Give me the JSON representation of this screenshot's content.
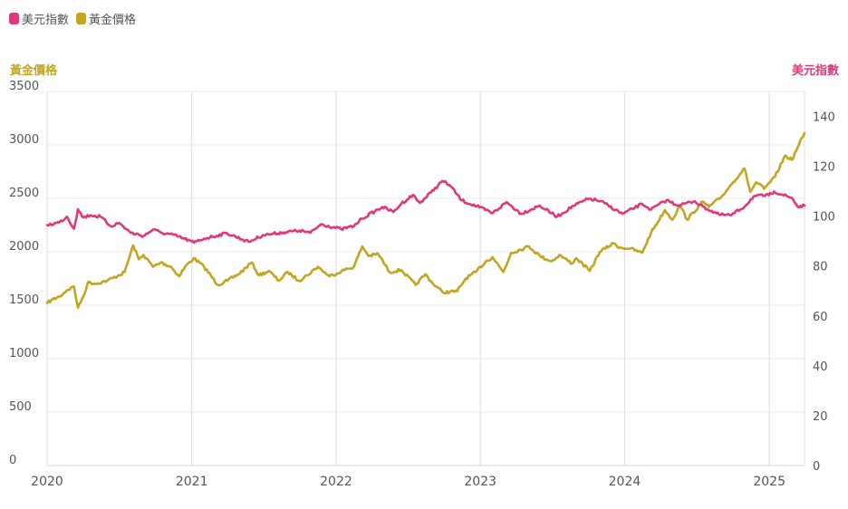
{
  "legend": [
    {
      "label": "美元指數",
      "color": "#e0387a"
    },
    {
      "label": "黃金價格",
      "color": "#c2a620"
    }
  ],
  "chart_data": {
    "type": "line",
    "x_axis": {
      "type": "date",
      "range": [
        "2020-01-01",
        "2025-03-31"
      ],
      "ticks": [
        "2020",
        "2021",
        "2022",
        "2023",
        "2024",
        "2025"
      ]
    },
    "y_left": {
      "label": "黃金價格",
      "color": "#c2a620",
      "range": [
        0,
        3500
      ],
      "ticks": [
        0,
        500,
        1000,
        1500,
        2000,
        2500,
        3000,
        3500
      ]
    },
    "y_right": {
      "label": "美元指數",
      "color": "#e0387a",
      "range": [
        0,
        150
      ],
      "ticks": [
        0,
        20,
        40,
        60,
        80,
        100,
        120,
        140
      ]
    },
    "grid": true,
    "legend_position": "top-left",
    "series": [
      {
        "name": "黃金價格",
        "axis": "left",
        "color": "#c2a620",
        "points": [
          [
            "2020-01-01",
            1520
          ],
          [
            "2020-01-15",
            1555
          ],
          [
            "2020-02-01",
            1580
          ],
          [
            "2020-02-20",
            1640
          ],
          [
            "2020-03-09",
            1675
          ],
          [
            "2020-03-19",
            1475
          ],
          [
            "2020-04-01",
            1580
          ],
          [
            "2020-04-15",
            1720
          ],
          [
            "2020-05-01",
            1700
          ],
          [
            "2020-06-01",
            1730
          ],
          [
            "2020-07-01",
            1780
          ],
          [
            "2020-07-15",
            1810
          ],
          [
            "2020-08-06",
            2060
          ],
          [
            "2020-08-20",
            1930
          ],
          [
            "2020-09-01",
            1970
          ],
          [
            "2020-09-25",
            1860
          ],
          [
            "2020-10-15",
            1900
          ],
          [
            "2020-11-09",
            1860
          ],
          [
            "2020-11-30",
            1770
          ],
          [
            "2020-12-15",
            1860
          ],
          [
            "2021-01-06",
            1940
          ],
          [
            "2021-02-01",
            1860
          ],
          [
            "2021-03-08",
            1690
          ],
          [
            "2021-04-01",
            1730
          ],
          [
            "2021-05-03",
            1800
          ],
          [
            "2021-06-01",
            1900
          ],
          [
            "2021-06-20",
            1780
          ],
          [
            "2021-07-15",
            1820
          ],
          [
            "2021-08-09",
            1730
          ],
          [
            "2021-09-01",
            1810
          ],
          [
            "2021-09-29",
            1730
          ],
          [
            "2021-10-20",
            1780
          ],
          [
            "2021-11-16",
            1860
          ],
          [
            "2021-12-15",
            1770
          ],
          [
            "2022-01-15",
            1820
          ],
          [
            "2022-02-15",
            1860
          ],
          [
            "2022-03-08",
            2050
          ],
          [
            "2022-03-25",
            1960
          ],
          [
            "2022-04-18",
            1980
          ],
          [
            "2022-05-16",
            1810
          ],
          [
            "2022-06-15",
            1830
          ],
          [
            "2022-07-21",
            1690
          ],
          [
            "2022-08-15",
            1790
          ],
          [
            "2022-09-01",
            1710
          ],
          [
            "2022-09-28",
            1620
          ],
          [
            "2022-11-03",
            1630
          ],
          [
            "2022-11-25",
            1750
          ],
          [
            "2022-12-20",
            1810
          ],
          [
            "2023-01-15",
            1910
          ],
          [
            "2023-02-01",
            1950
          ],
          [
            "2023-02-28",
            1810
          ],
          [
            "2023-03-20",
            1990
          ],
          [
            "2023-05-04",
            2050
          ],
          [
            "2023-06-01",
            1960
          ],
          [
            "2023-06-30",
            1910
          ],
          [
            "2023-07-20",
            1970
          ],
          [
            "2023-08-21",
            1890
          ],
          [
            "2023-09-01",
            1940
          ],
          [
            "2023-10-05",
            1820
          ],
          [
            "2023-10-30",
            2000
          ],
          [
            "2023-12-04",
            2080
          ],
          [
            "2023-12-20",
            2040
          ],
          [
            "2024-01-15",
            2030
          ],
          [
            "2024-02-14",
            1990
          ],
          [
            "2024-03-08",
            2180
          ],
          [
            "2024-04-12",
            2390
          ],
          [
            "2024-05-01",
            2300
          ],
          [
            "2024-05-20",
            2440
          ],
          [
            "2024-06-07",
            2300
          ],
          [
            "2024-07-17",
            2470
          ],
          [
            "2024-08-01",
            2420
          ],
          [
            "2024-09-01",
            2510
          ],
          [
            "2024-10-01",
            2650
          ],
          [
            "2024-10-30",
            2780
          ],
          [
            "2024-11-14",
            2560
          ],
          [
            "2024-11-29",
            2650
          ],
          [
            "2024-12-19",
            2590
          ],
          [
            "2025-01-15",
            2700
          ],
          [
            "2025-02-10",
            2900
          ],
          [
            "2025-02-27",
            2860
          ],
          [
            "2025-03-14",
            2980
          ],
          [
            "2025-03-31",
            3110
          ]
        ]
      },
      {
        "name": "美元指數",
        "axis": "right",
        "color": "#e0387a",
        "points": [
          [
            "2020-01-01",
            96.4
          ],
          [
            "2020-02-01",
            97.5
          ],
          [
            "2020-02-20",
            99.8
          ],
          [
            "2020-03-09",
            95.0
          ],
          [
            "2020-03-19",
            102.8
          ],
          [
            "2020-04-01",
            99.5
          ],
          [
            "2020-04-20",
            100.4
          ],
          [
            "2020-05-15",
            99.8
          ],
          [
            "2020-06-10",
            96.0
          ],
          [
            "2020-07-01",
            97.3
          ],
          [
            "2020-07-31",
            93.3
          ],
          [
            "2020-09-01",
            92.1
          ],
          [
            "2020-09-25",
            94.6
          ],
          [
            "2020-10-15",
            93.4
          ],
          [
            "2020-11-15",
            92.5
          ],
          [
            "2020-12-31",
            89.9
          ],
          [
            "2021-01-06",
            89.4
          ],
          [
            "2021-02-01",
            91.0
          ],
          [
            "2021-03-31",
            93.2
          ],
          [
            "2021-05-25",
            89.7
          ],
          [
            "2021-06-30",
            92.4
          ],
          [
            "2021-07-15",
            92.7
          ],
          [
            "2021-08-20",
            93.5
          ],
          [
            "2021-09-30",
            94.2
          ],
          [
            "2021-10-28",
            93.3
          ],
          [
            "2021-11-24",
            96.8
          ],
          [
            "2022-01-14",
            94.8
          ],
          [
            "2022-02-15",
            96.0
          ],
          [
            "2022-03-07",
            99.0
          ],
          [
            "2022-04-28",
            103.7
          ],
          [
            "2022-05-26",
            101.7
          ],
          [
            "2022-06-15",
            105.0
          ],
          [
            "2022-07-14",
            108.5
          ],
          [
            "2022-08-01",
            105.3
          ],
          [
            "2022-08-29",
            109.5
          ],
          [
            "2022-09-27",
            114.1
          ],
          [
            "2022-10-15",
            112.5
          ],
          [
            "2022-11-15",
            106.3
          ],
          [
            "2022-12-30",
            103.5
          ],
          [
            "2023-02-01",
            101.2
          ],
          [
            "2023-03-08",
            105.6
          ],
          [
            "2023-04-14",
            101.0
          ],
          [
            "2023-05-31",
            104.2
          ],
          [
            "2023-07-14",
            99.8
          ],
          [
            "2023-08-25",
            104.2
          ],
          [
            "2023-10-03",
            107.0
          ],
          [
            "2023-11-01",
            106.0
          ],
          [
            "2023-12-27",
            100.9
          ],
          [
            "2024-02-14",
            104.9
          ],
          [
            "2024-03-08",
            102.7
          ],
          [
            "2024-04-16",
            106.4
          ],
          [
            "2024-05-15",
            104.3
          ],
          [
            "2024-06-26",
            106.0
          ],
          [
            "2024-07-17",
            103.8
          ],
          [
            "2024-08-27",
            100.6
          ],
          [
            "2024-09-27",
            100.4
          ],
          [
            "2024-10-31",
            104.0
          ],
          [
            "2024-11-22",
            107.9
          ],
          [
            "2024-12-31",
            108.4
          ],
          [
            "2025-01-13",
            109.9
          ],
          [
            "2025-02-03",
            108.6
          ],
          [
            "2025-02-28",
            107.2
          ],
          [
            "2025-03-14",
            103.7
          ],
          [
            "2025-03-31",
            104.2
          ]
        ]
      }
    ]
  }
}
